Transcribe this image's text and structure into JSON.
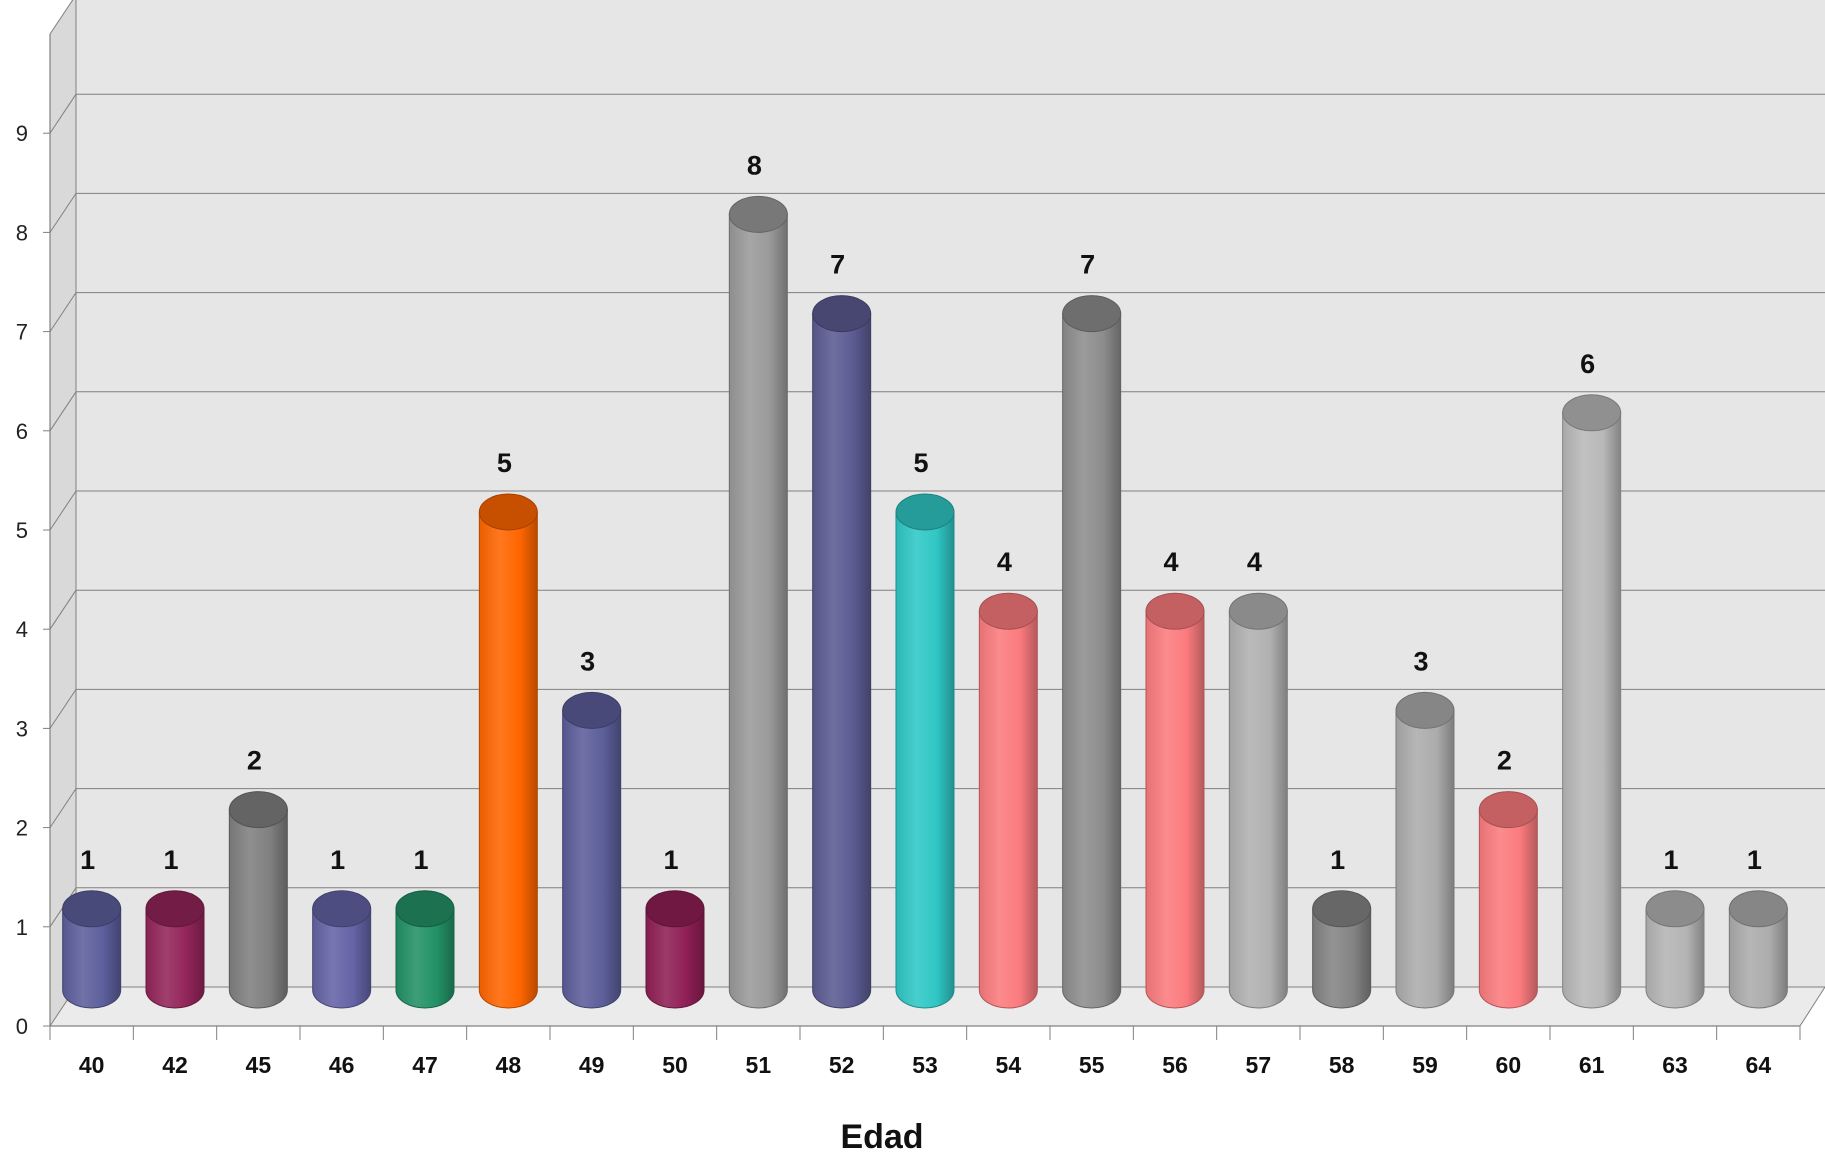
{
  "chart_data": {
    "type": "bar",
    "style": "3d-cylinder",
    "xlabel": "Edad",
    "ylabel": "",
    "ylim": [
      0,
      10
    ],
    "yticks": [
      "0",
      "1",
      "2",
      "3",
      "4",
      "5",
      "6",
      "7",
      "8",
      "9"
    ],
    "grid": true,
    "categories": [
      "40",
      "42",
      "45",
      "46",
      "47",
      "48",
      "49",
      "50",
      "51",
      "52",
      "53",
      "54",
      "55",
      "56",
      "57",
      "58",
      "59",
      "60",
      "61",
      "63",
      "64"
    ],
    "values": [
      1,
      1,
      2,
      1,
      1,
      5,
      3,
      1,
      8,
      7,
      5,
      4,
      7,
      4,
      4,
      1,
      3,
      2,
      6,
      1,
      1
    ],
    "colors": [
      "#5c5f9c",
      "#93255a",
      "#808080",
      "#6463a6",
      "#239166",
      "#ff6600",
      "#5c5e9a",
      "#8f1f55",
      "#9a9a9a",
      "#5b5b92",
      "#2fc7c5",
      "#fb7b7e",
      "#8d8d8d",
      "#fb7b7e",
      "#b1b1b1",
      "#848484",
      "#acacac",
      "#fb7b7e",
      "#b8b8b8",
      "#b4b4b4",
      "#acacac"
    ],
    "wall_color": "#e6e6e6",
    "gridline_color": "#808080"
  }
}
